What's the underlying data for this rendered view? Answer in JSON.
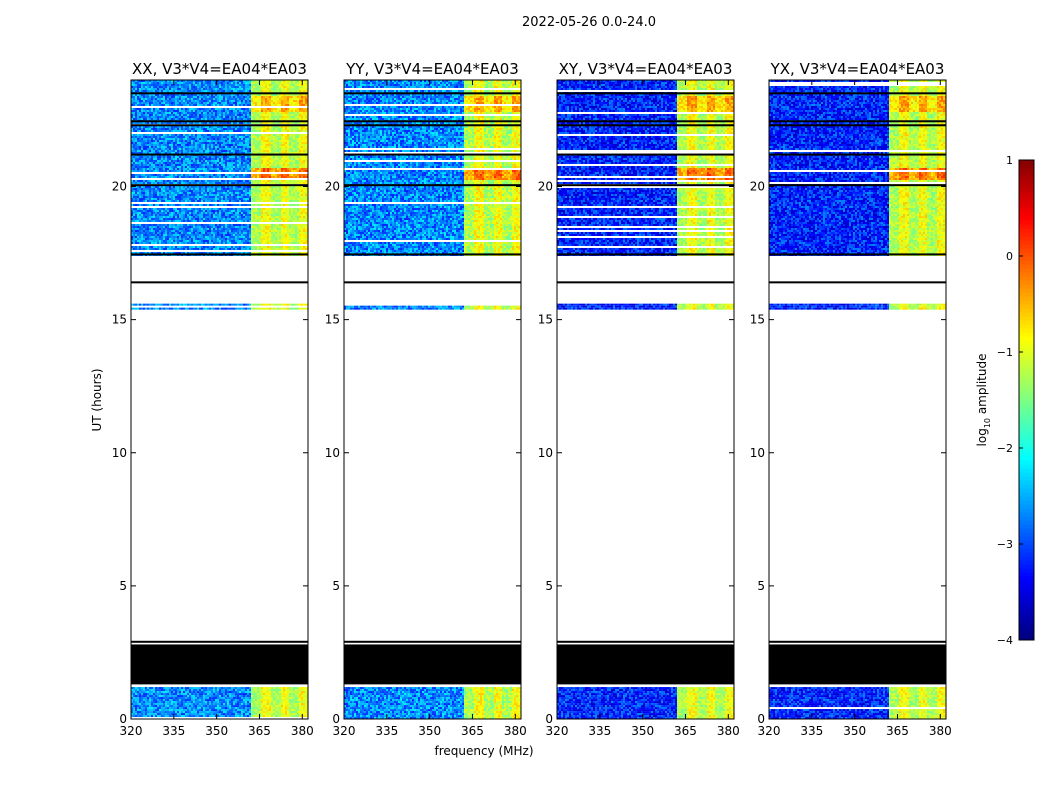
{
  "figure": {
    "suptitle": "2022-05-26 0.0-24.0",
    "xlabel": "frequency (MHz)",
    "ylabel": "UT (hours)",
    "colorbar_label_prefix": "log",
    "colorbar_label_sub": "10",
    "colorbar_label_suffix": " amplitude"
  },
  "chart_data": {
    "type": "heatmap",
    "title": "2022-05-26 0.0-24.0",
    "xlabel": "frequency (MHz)",
    "ylabel": "UT (hours)",
    "xlim": [
      320,
      382
    ],
    "ylim": [
      0,
      24
    ],
    "xticks": [
      320,
      335,
      350,
      365,
      380
    ],
    "yticks": [
      0,
      5,
      10,
      15,
      20
    ],
    "colorbar": {
      "label": "log10 amplitude",
      "range": [
        -4,
        1
      ],
      "ticks": [
        1,
        0,
        -1,
        -2,
        -3,
        -4
      ],
      "colormap": "jet"
    },
    "panels": [
      {
        "title": "XX, V3*V4=EA04*EA03",
        "baseline": -2.7
      },
      {
        "title": "YY, V3*V4=EA04*EA03",
        "baseline": -2.7
      },
      {
        "title": "XY, V3*V4=EA04*EA03",
        "baseline": -3.2
      },
      {
        "title": "YX, V3*V4=EA04*EA03",
        "baseline": -3.2
      }
    ],
    "data_rows_ut": [
      [
        0.0,
        1.2
      ],
      [
        15.4,
        15.6
      ],
      [
        17.4,
        24.0
      ]
    ],
    "flagged_rows_ut": [
      [
        1.3,
        2.8
      ]
    ],
    "rfi_band_mhz": [
      362,
      382
    ],
    "rfi_level_log10": [
      -1.5,
      0.0
    ]
  },
  "colors": {
    "axis": "#000000",
    "flagged": "#000000",
    "background": "#ffffff"
  }
}
